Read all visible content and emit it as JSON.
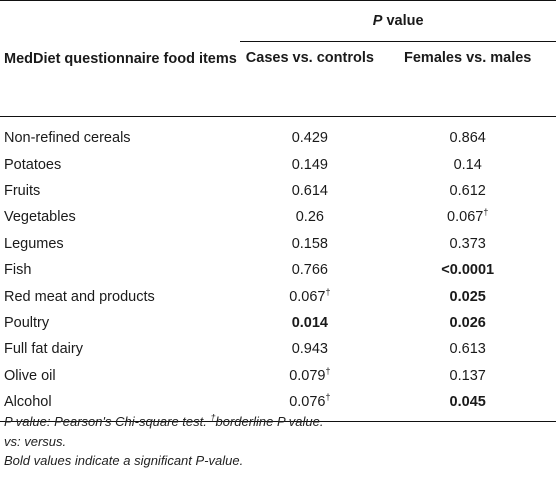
{
  "table": {
    "group_header": {
      "p_italic": "P",
      "rest": " value"
    },
    "col_headers": {
      "item": "MedDiet questionnaire food items",
      "cases": "Cases vs. controls",
      "sex": "Females vs. males"
    },
    "rows": [
      {
        "item": "Non-refined cereals",
        "cases": "0.429",
        "cases_sup": "",
        "cases_bold": false,
        "sex": "0.864",
        "sex_sup": "",
        "sex_bold": false
      },
      {
        "item": "Potatoes",
        "cases": "0.149",
        "cases_sup": "",
        "cases_bold": false,
        "sex": "0.14",
        "sex_sup": "",
        "sex_bold": false
      },
      {
        "item": "Fruits",
        "cases": "0.614",
        "cases_sup": "",
        "cases_bold": false,
        "sex": "0.612",
        "sex_sup": "",
        "sex_bold": false
      },
      {
        "item": "Vegetables",
        "cases": "0.26",
        "cases_sup": "",
        "cases_bold": false,
        "sex": "0.067",
        "sex_sup": "†",
        "sex_bold": false
      },
      {
        "item": "Legumes",
        "cases": "0.158",
        "cases_sup": "",
        "cases_bold": false,
        "sex": "0.373",
        "sex_sup": "",
        "sex_bold": false
      },
      {
        "item": "Fish",
        "cases": "0.766",
        "cases_sup": "",
        "cases_bold": false,
        "sex": "<0.0001",
        "sex_sup": "",
        "sex_bold": true
      },
      {
        "item": "Red meat and products",
        "cases": "0.067",
        "cases_sup": "†",
        "cases_bold": false,
        "sex": "0.025",
        "sex_sup": "",
        "sex_bold": true
      },
      {
        "item": "Poultry",
        "cases": "0.014",
        "cases_sup": "",
        "cases_bold": true,
        "sex": "0.026",
        "sex_sup": "",
        "sex_bold": true
      },
      {
        "item": "Full fat dairy",
        "cases": "0.943",
        "cases_sup": "",
        "cases_bold": false,
        "sex": "0.613",
        "sex_sup": "",
        "sex_bold": false
      },
      {
        "item": "Olive oil",
        "cases": "0.079",
        "cases_sup": "†",
        "cases_bold": false,
        "sex": "0.137",
        "sex_sup": "",
        "sex_bold": false
      },
      {
        "item": "Alcohol",
        "cases": "0.076",
        "cases_sup": "†",
        "cases_bold": false,
        "sex": "0.045",
        "sex_sup": "",
        "sex_bold": true
      }
    ]
  },
  "footnotes": {
    "line1_a": "P value: Pearson's Chi-square test. ",
    "line1_dagger": "†",
    "line1_b": "borderline P value.",
    "line2": "vs: versus.",
    "line3": "Bold values indicate a significant P-value."
  }
}
